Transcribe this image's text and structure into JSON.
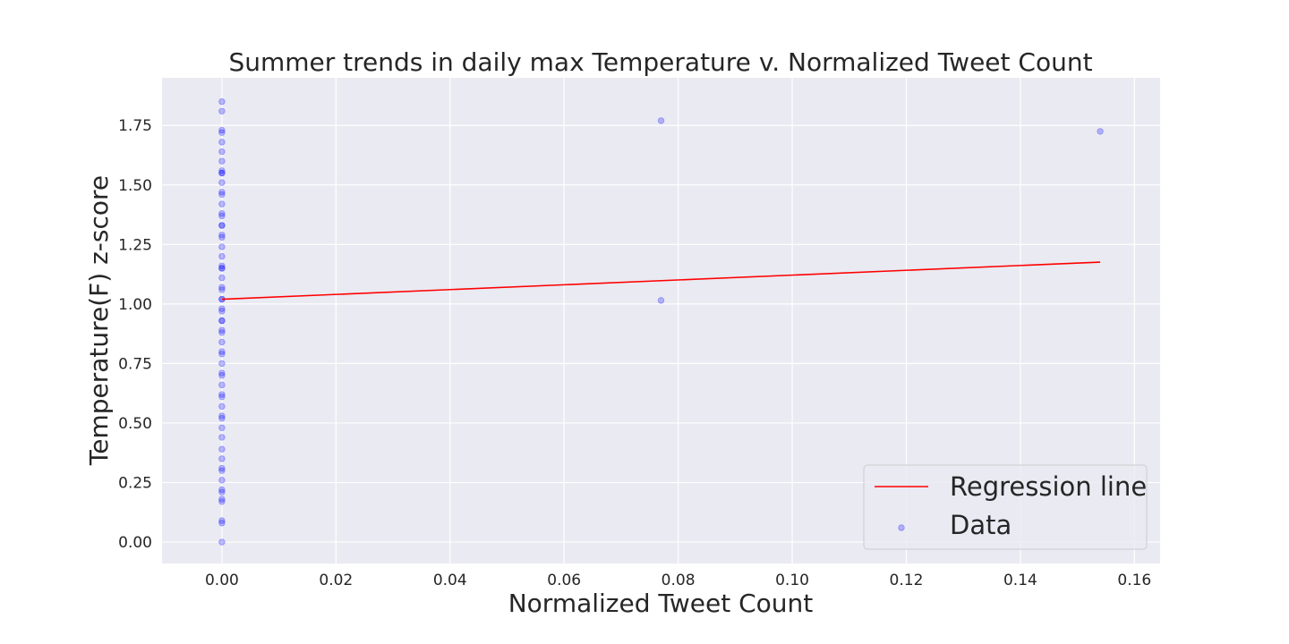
{
  "chart_data": {
    "type": "scatter",
    "title": "Summer trends in daily max Temperature v. Normalized Tweet Count",
    "xlabel": "Normalized Tweet Count",
    "ylabel": "Temperature(F) z-score",
    "xlim": [
      -0.0105,
      0.1645
    ],
    "ylim": [
      -0.09,
      1.95
    ],
    "xticks": [
      0.0,
      0.02,
      0.04,
      0.06,
      0.08,
      0.1,
      0.12,
      0.14,
      0.16
    ],
    "xtick_labels": [
      "0.00",
      "0.02",
      "0.04",
      "0.06",
      "0.08",
      "0.10",
      "0.12",
      "0.14",
      "0.16"
    ],
    "yticks": [
      0.0,
      0.25,
      0.5,
      0.75,
      1.0,
      1.25,
      1.5,
      1.75
    ],
    "ytick_labels": [
      "0.00",
      "0.25",
      "0.50",
      "0.75",
      "1.00",
      "1.25",
      "1.50",
      "1.75"
    ],
    "grid": true,
    "legend_position": "bottom-right",
    "background_color": "#eaeaf2",
    "series": [
      {
        "name": "Regression line",
        "kind": "line",
        "color": "#ff0000",
        "x": [
          0.0,
          0.154
        ],
        "y": [
          1.02,
          1.176
        ]
      },
      {
        "name": "Data",
        "kind": "scatter",
        "color": "#0000ff",
        "x": [
          0,
          0,
          0,
          0,
          0,
          0,
          0,
          0,
          0,
          0,
          0,
          0,
          0,
          0,
          0,
          0,
          0,
          0,
          0,
          0,
          0,
          0,
          0,
          0,
          0,
          0,
          0,
          0,
          0,
          0,
          0,
          0,
          0,
          0,
          0,
          0,
          0,
          0,
          0,
          0,
          0,
          0,
          0,
          0,
          0,
          0,
          0,
          0,
          0,
          0,
          0,
          0,
          0,
          0,
          0,
          0,
          0,
          0,
          0,
          0,
          0,
          0,
          0.077,
          0.077,
          0.154
        ],
        "y": [
          0.0,
          0.08,
          0.09,
          0.17,
          0.18,
          0.21,
          0.22,
          0.26,
          0.3,
          0.31,
          0.35,
          0.39,
          0.44,
          0.48,
          0.52,
          0.53,
          0.57,
          0.61,
          0.62,
          0.66,
          0.7,
          0.71,
          0.75,
          0.79,
          0.8,
          0.84,
          0.88,
          0.89,
          0.93,
          0.97,
          0.98,
          1.02,
          1.06,
          1.07,
          1.11,
          1.15,
          1.16,
          1.2,
          1.24,
          1.28,
          1.29,
          1.33,
          1.37,
          1.38,
          1.42,
          1.46,
          1.47,
          1.51,
          1.55,
          1.56,
          1.6,
          1.64,
          1.68,
          1.72,
          1.73,
          1.81,
          1.85,
          1.15,
          1.02,
          0.93,
          1.33,
          1.55,
          1.77,
          1.015,
          1.725
        ]
      }
    ]
  }
}
